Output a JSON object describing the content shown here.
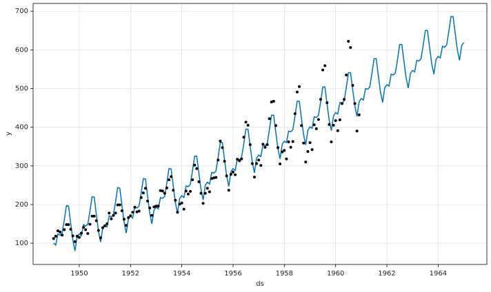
{
  "chart_data": {
    "type": "line",
    "xlabel": "ds",
    "ylabel": "y",
    "xlim": [
      1948.2,
      1965.9
    ],
    "ylim": [
      45,
      720
    ],
    "xticks": [
      1950,
      1952,
      1954,
      1956,
      1958,
      1960,
      1962,
      1964
    ],
    "yticks": [
      100,
      200,
      300,
      400,
      500,
      600,
      700
    ],
    "grid": true,
    "x": [
      1949.0,
      1949.083,
      1949.167,
      1949.25,
      1949.333,
      1949.417,
      1949.5,
      1949.583,
      1949.667,
      1949.75,
      1949.833,
      1949.917,
      1950.0,
      1950.083,
      1950.167,
      1950.25,
      1950.333,
      1950.417,
      1950.5,
      1950.583,
      1950.667,
      1950.75,
      1950.833,
      1950.917,
      1951.0,
      1951.083,
      1951.167,
      1951.25,
      1951.333,
      1951.417,
      1951.5,
      1951.583,
      1951.667,
      1951.75,
      1951.833,
      1951.917,
      1952.0,
      1952.083,
      1952.167,
      1952.25,
      1952.333,
      1952.417,
      1952.5,
      1952.583,
      1952.667,
      1952.75,
      1952.833,
      1952.917,
      1953.0,
      1953.083,
      1953.167,
      1953.25,
      1953.333,
      1953.417,
      1953.5,
      1953.583,
      1953.667,
      1953.75,
      1953.833,
      1953.917,
      1954.0,
      1954.083,
      1954.167,
      1954.25,
      1954.333,
      1954.417,
      1954.5,
      1954.583,
      1954.667,
      1954.75,
      1954.833,
      1954.917,
      1955.0,
      1955.083,
      1955.167,
      1955.25,
      1955.333,
      1955.417,
      1955.5,
      1955.583,
      1955.667,
      1955.75,
      1955.833,
      1955.917,
      1956.0,
      1956.083,
      1956.167,
      1956.25,
      1956.333,
      1956.417,
      1956.5,
      1956.583,
      1956.667,
      1956.75,
      1956.833,
      1956.917,
      1957.0,
      1957.083,
      1957.167,
      1957.25,
      1957.333,
      1957.417,
      1957.5,
      1957.583,
      1957.667,
      1957.75,
      1957.833,
      1957.917,
      1958.0,
      1958.083,
      1958.167,
      1958.25,
      1958.333,
      1958.417,
      1958.5,
      1958.583,
      1958.667,
      1958.75,
      1958.833,
      1958.917,
      1959.0,
      1959.083,
      1959.167,
      1959.25,
      1959.333,
      1959.417,
      1959.5,
      1959.583,
      1959.667,
      1959.75,
      1959.833,
      1959.917,
      1960.0,
      1960.083,
      1960.167,
      1960.25,
      1960.333,
      1960.417,
      1960.5,
      1960.583,
      1960.667,
      1960.75,
      1960.833,
      1960.917,
      1961.0,
      1961.083,
      1961.167,
      1961.25,
      1961.333,
      1961.417,
      1961.5,
      1961.583,
      1961.667,
      1961.75,
      1961.833,
      1961.917,
      1962.0,
      1962.083,
      1962.167,
      1962.25,
      1962.333,
      1962.417,
      1962.5,
      1962.583,
      1962.667,
      1962.75,
      1962.833,
      1962.917,
      1963.0,
      1963.083,
      1963.167,
      1963.25,
      1963.333,
      1963.417,
      1963.5,
      1963.583,
      1963.667,
      1963.75,
      1963.833,
      1963.917,
      1964.0,
      1964.083,
      1964.167,
      1964.25,
      1964.333,
      1964.417,
      1964.5,
      1964.583,
      1964.667,
      1964.75,
      1964.833,
      1964.917,
      1965.0
    ],
    "series": [
      {
        "style": "line",
        "color": "#0072B2",
        "values": [
          100,
          95,
          124,
          121,
          126,
          160,
          197,
          196,
          151,
          108,
          80,
          117,
          124,
          119,
          148,
          144,
          149,
          183,
          220,
          219,
          174,
          131,
          103,
          140,
          147,
          142,
          171,
          168,
          173,
          207,
          244,
          242,
          197,
          154,
          126,
          163,
          170,
          165,
          194,
          191,
          196,
          230,
          267,
          266,
          221,
          178,
          150,
          186,
          193,
          189,
          218,
          216,
          221,
          256,
          293,
          292,
          248,
          205,
          178,
          215,
          223,
          218,
          248,
          246,
          252,
          287,
          325,
          325,
          281,
          239,
          212,
          250,
          258,
          253,
          283,
          281,
          287,
          322,
          360,
          360,
          316,
          274,
          247,
          285,
          293,
          288,
          318,
          316,
          322,
          357,
          395,
          395,
          351,
          309,
          282,
          320,
          328,
          324,
          354,
          352,
          358,
          393,
          431,
          431,
          387,
          345,
          318,
          356,
          364,
          360,
          390,
          388,
          394,
          429,
          467,
          467,
          423,
          381,
          354,
          392,
          401,
          397,
          427,
          425,
          431,
          466,
          504,
          504,
          460,
          418,
          391,
          429,
          438,
          434,
          464,
          462,
          468,
          503,
          541,
          541,
          497,
          455,
          428,
          466,
          474,
          470,
          500,
          498,
          504,
          539,
          577,
          577,
          533,
          491,
          464,
          502,
          510,
          506,
          537,
          535,
          541,
          576,
          614,
          614,
          570,
          528,
          501,
          539,
          547,
          543,
          573,
          571,
          577,
          612,
          650,
          650,
          606,
          564,
          537,
          575,
          583,
          579,
          609,
          607,
          613,
          648,
          686,
          686,
          642,
          600,
          573,
          611,
          619
        ]
      },
      {
        "style": "scatter",
        "color": "#000000",
        "values": [
          112,
          118,
          132,
          129,
          121,
          135,
          148,
          148,
          136,
          119,
          104,
          118,
          115,
          126,
          141,
          135,
          125,
          149,
          170,
          170,
          158,
          133,
          114,
          140,
          145,
          150,
          178,
          163,
          172,
          178,
          199,
          199,
          184,
          162,
          146,
          166,
          171,
          180,
          193,
          181,
          183,
          218,
          230,
          242,
          209,
          191,
          172,
          194,
          196,
          196,
          236,
          235,
          229,
          243,
          264,
          272,
          237,
          211,
          180,
          201,
          204,
          188,
          235,
          227,
          234,
          264,
          302,
          293,
          259,
          229,
          203,
          229,
          242,
          233,
          267,
          269,
          270,
          315,
          364,
          347,
          312,
          274,
          237,
          278,
          284,
          277,
          317,
          313,
          318,
          374,
          413,
          405,
          355,
          306,
          271,
          306,
          315,
          301,
          356,
          348,
          355,
          422,
          465,
          467,
          404,
          347,
          305,
          336,
          340,
          318,
          362,
          348,
          363,
          435,
          491,
          505,
          404,
          359,
          310,
          337,
          360,
          342,
          406,
          396,
          420,
          472,
          548,
          559,
          463,
          407,
          362,
          405,
          417,
          391,
          419,
          461,
          472,
          535,
          622,
          606,
          508,
          461,
          390,
          432,
          null,
          null,
          null,
          null,
          null,
          null,
          null,
          null,
          null,
          null,
          null,
          null,
          null,
          null,
          null,
          null,
          null,
          null,
          null,
          null,
          null,
          null,
          null,
          null,
          null,
          null,
          null,
          null,
          null,
          null,
          null,
          null,
          null,
          null,
          null,
          null,
          null,
          null,
          null,
          null,
          null,
          null,
          null,
          null,
          null,
          null,
          null,
          null,
          null
        ]
      }
    ]
  }
}
